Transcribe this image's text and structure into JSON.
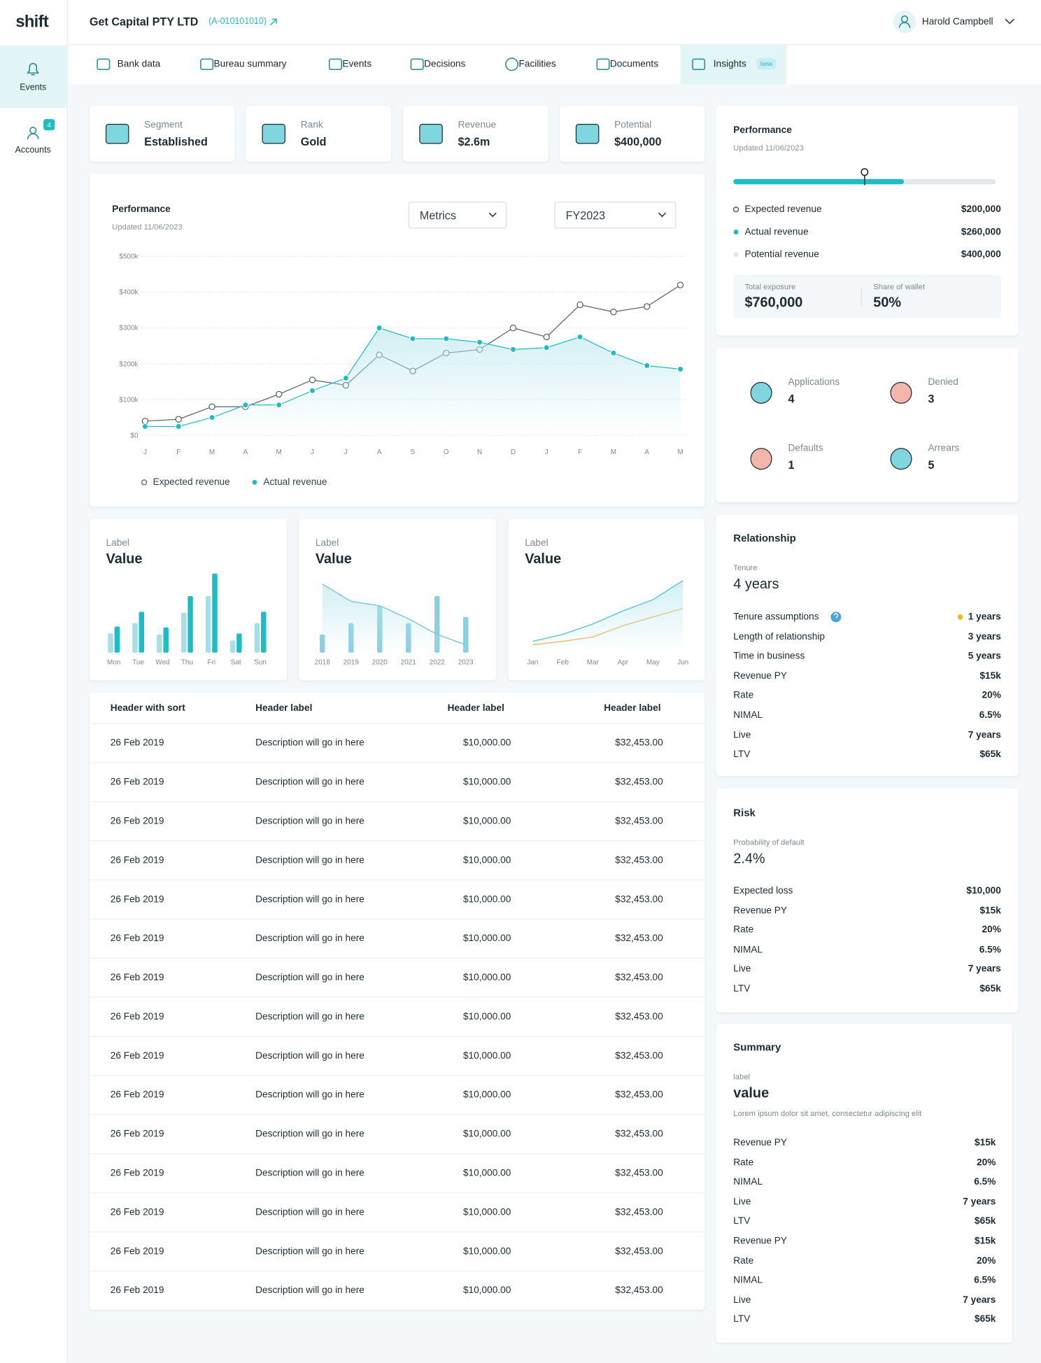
{
  "sidebar": {
    "logo": "shift",
    "items": [
      {
        "label": "Events"
      },
      {
        "label": "Accounts",
        "badge": "4"
      }
    ]
  },
  "header": {
    "company": "Get Capital PTY LTD",
    "account_id": "(A-010101010)",
    "user": "Harold Campbell"
  },
  "tabs": [
    {
      "label": "Bank data"
    },
    {
      "label": "Bureau summary"
    },
    {
      "label": "Events"
    },
    {
      "label": "Decisions"
    },
    {
      "label": "Facilities"
    },
    {
      "label": "Documents"
    },
    {
      "label": "Insights",
      "badge": "beta"
    }
  ],
  "kpis": [
    {
      "label": "Segment",
      "value": "Established"
    },
    {
      "label": "Rank",
      "value": "Gold"
    },
    {
      "label": "Revenue",
      "value": "$2.6m"
    },
    {
      "label": "Potential",
      "value": "$400,000"
    }
  ],
  "chart_controls": [
    "Metrics",
    "FY2023"
  ],
  "chart_data": [
    {
      "type": "line",
      "title": "Performance",
      "subtitle": "Updated 11/06/2023",
      "categories": [
        "J",
        "F",
        "M",
        "A",
        "M",
        "J",
        "J",
        "A",
        "S",
        "O",
        "N",
        "D",
        "J",
        "F",
        "M",
        "A",
        "M"
      ],
      "ylim": [
        0,
        500000
      ],
      "yticks": [
        {
          "value": 0,
          "label": "$0"
        },
        {
          "value": 100000,
          "label": "$100k"
        },
        {
          "value": 200000,
          "label": "$200k"
        },
        {
          "value": 300000,
          "label": "$300k"
        },
        {
          "value": 400000,
          "label": "$400k"
        },
        {
          "value": 500000,
          "label": "$500k"
        }
      ],
      "grid": true,
      "series": [
        {
          "name": "Expected revenue",
          "color": "#55606a",
          "marker": "hollow",
          "values": [
            40000,
            45000,
            80000,
            80000,
            115000,
            155000,
            140000,
            225000,
            180000,
            230000,
            240000,
            300000,
            275000,
            365000,
            345000,
            360000,
            420000
          ]
        },
        {
          "name": "Actual revenue",
          "color": "#1fbcc6",
          "marker": "filled",
          "area": true,
          "values": [
            25000,
            25000,
            50000,
            85000,
            85000,
            125000,
            160000,
            300000,
            270000,
            270000,
            260000,
            240000,
            245000,
            275000,
            230000,
            195000,
            185000
          ]
        }
      ]
    },
    {
      "type": "bar",
      "label": "Label",
      "title": "Value",
      "categories": [
        "Mon",
        "Tue",
        "Wed",
        "Thu",
        "Fri",
        "Sat",
        "Sun"
      ],
      "ylim": [
        0,
        100
      ],
      "series": [
        {
          "color": "#a6dfe6",
          "values": [
            22,
            34,
            21,
            46,
            65,
            14,
            34
          ]
        },
        {
          "color": "#1fbcc6",
          "values": [
            30,
            47,
            29,
            65,
            91,
            22,
            47
          ]
        }
      ]
    },
    {
      "type": "bar",
      "label": "Label",
      "title": "Value",
      "categories": [
        "2018",
        "2019",
        "2020",
        "2021",
        "2022",
        "2023"
      ],
      "ylim": [
        0,
        100
      ],
      "series": [
        {
          "color": "#8ccfe0",
          "values": [
            21,
            34,
            54,
            34,
            65,
            41
          ]
        },
        {
          "type": "line",
          "color": "#7ec9db",
          "area": true,
          "values": [
            79,
            59,
            54,
            39,
            21,
            9
          ]
        }
      ]
    },
    {
      "type": "line",
      "label": "Label",
      "title": "Value",
      "categories": [
        "Jan",
        "Feb",
        "Mar",
        "Apr",
        "May",
        "Jun"
      ],
      "ylim": [
        0,
        100
      ],
      "series": [
        {
          "color": "#f2b766",
          "values": [
            9,
            13,
            18,
            31,
            41,
            51
          ]
        },
        {
          "color": "#5cc8dc",
          "area": true,
          "values": [
            13,
            21,
            33,
            48,
            61,
            83
          ]
        }
      ]
    }
  ],
  "table": {
    "headers": [
      "Header with sort",
      "Header label",
      "Header label",
      "Header label"
    ],
    "rows": [
      [
        "26 Feb 2019",
        "Description will go in here",
        "$10,000.00",
        "$32,453.00"
      ],
      [
        "26 Feb 2019",
        "Description will go in here",
        "$10,000.00",
        "$32,453.00"
      ],
      [
        "26 Feb 2019",
        "Description will go in here",
        "$10,000.00",
        "$32,453.00"
      ],
      [
        "26 Feb 2019",
        "Description will go in here",
        "$10,000.00",
        "$32,453.00"
      ],
      [
        "26 Feb 2019",
        "Description will go in here",
        "$10,000.00",
        "$32,453.00"
      ],
      [
        "26 Feb 2019",
        "Description will go in here",
        "$10,000.00",
        "$32,453.00"
      ],
      [
        "26 Feb 2019",
        "Description will go in here",
        "$10,000.00",
        "$32,453.00"
      ],
      [
        "26 Feb 2019",
        "Description will go in here",
        "$10,000.00",
        "$32,453.00"
      ],
      [
        "26 Feb 2019",
        "Description will go in here",
        "$10,000.00",
        "$32,453.00"
      ],
      [
        "26 Feb 2019",
        "Description will go in here",
        "$10,000.00",
        "$32,453.00"
      ],
      [
        "26 Feb 2019",
        "Description will go in here",
        "$10,000.00",
        "$32,453.00"
      ],
      [
        "26 Feb 2019",
        "Description will go in here",
        "$10,000.00",
        "$32,453.00"
      ],
      [
        "26 Feb 2019",
        "Description will go in here",
        "$10,000.00",
        "$32,453.00"
      ],
      [
        "26 Feb 2019",
        "Description will go in here",
        "$10,000.00",
        "$32,453.00"
      ],
      [
        "26 Feb 2019",
        "Description will go in here",
        "$10,000.00",
        "$32,453.00"
      ]
    ]
  },
  "performance": {
    "title": "Performance",
    "subtitle": "Updated 11/06/2023",
    "items": [
      {
        "label": "Expected revenue",
        "value": "$200,000",
        "color": "#ffffff"
      },
      {
        "label": "Actual revenue",
        "value": "$260,000",
        "color": "#1fbcc6"
      },
      {
        "label": "Potential revenue",
        "value": "$400,000",
        "color": "#e4e7ea"
      }
    ],
    "exposure": {
      "label": "Total exposure",
      "value": "$760,000"
    },
    "share": {
      "label": "Share of wallet",
      "value": "50%"
    }
  },
  "stats": [
    {
      "label": "Applications",
      "value": "4"
    },
    {
      "label": "Denied",
      "value": "3"
    },
    {
      "label": "Defaults",
      "value": "1"
    },
    {
      "label": "Arrears",
      "value": "5"
    }
  ],
  "relationship": {
    "title": "Relationship",
    "label": "Tenure",
    "value": "4 years",
    "rows": [
      [
        "Tenure assumptions",
        "1 years"
      ],
      [
        "Length of relationship",
        "3 years"
      ],
      [
        "Time in business",
        "5 years"
      ],
      [
        "Revenue PY",
        "$15k"
      ],
      [
        "Rate",
        "20%"
      ],
      [
        "NIMAL",
        "6.5%"
      ],
      [
        "Live",
        "7 years"
      ],
      [
        "LTV",
        "$65k"
      ]
    ]
  },
  "risk": {
    "title": "Risk",
    "label": "Probability of default",
    "value": "2.4%",
    "rows": [
      [
        "Expected loss",
        "$10,000"
      ],
      [
        "Revenue PY",
        "$15k"
      ],
      [
        "Rate",
        "20%"
      ],
      [
        "NIMAL",
        "6.5%"
      ],
      [
        "Live",
        "7 years"
      ],
      [
        "LTV",
        "$65k"
      ]
    ]
  },
  "summary": {
    "title": "Summary",
    "label": "label",
    "value": "value",
    "description": "Lorem ipsum dolor sit amet, consectetur adipiscing elit",
    "rows": [
      [
        "Revenue PY",
        "$15k"
      ],
      [
        "Rate",
        "20%"
      ],
      [
        "NIMAL",
        "6.5%"
      ],
      [
        "Live",
        "7 years"
      ],
      [
        "LTV",
        "$65k"
      ],
      [
        "Revenue PY",
        "$15k"
      ],
      [
        "Rate",
        "20%"
      ],
      [
        "NIMAL",
        "6.5%"
      ],
      [
        "Live",
        "7 years"
      ],
      [
        "LTV",
        "$65k"
      ]
    ]
  }
}
